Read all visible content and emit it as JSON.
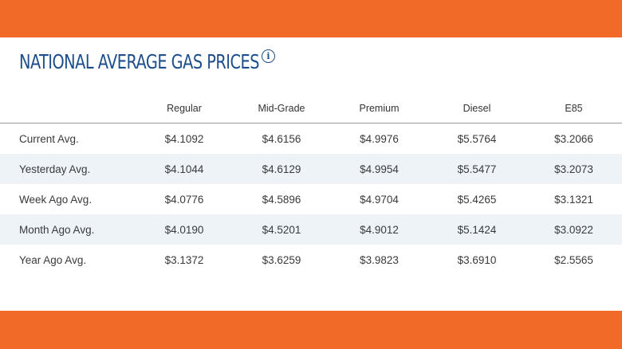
{
  "header": {
    "title": "NATIONAL AVERAGE GAS PRICES",
    "info_icon": "info-icon"
  },
  "table": {
    "columns": [
      "",
      "Regular",
      "Mid-Grade",
      "Premium",
      "Diesel",
      "E85"
    ],
    "rows": [
      {
        "label": "Current Avg.",
        "values": [
          "$4.1092",
          "$4.6156",
          "$4.9976",
          "$5.5764",
          "$3.2066"
        ]
      },
      {
        "label": "Yesterday Avg.",
        "values": [
          "$4.1044",
          "$4.6129",
          "$4.9954",
          "$5.5477",
          "$3.2073"
        ]
      },
      {
        "label": "Week Ago Avg.",
        "values": [
          "$4.0776",
          "$4.5896",
          "$4.9704",
          "$5.4265",
          "$3.1321"
        ]
      },
      {
        "label": "Month Ago Avg.",
        "values": [
          "$4.0190",
          "$4.5201",
          "$4.9012",
          "$5.1424",
          "$3.0922"
        ]
      },
      {
        "label": "Year Ago Avg.",
        "values": [
          "$3.1372",
          "$3.6259",
          "$3.9823",
          "$3.6910",
          "$2.5565"
        ]
      }
    ]
  },
  "colors": {
    "band": "#f26a27",
    "title": "#1e4f8c",
    "alt_row": "#eef3f8"
  }
}
